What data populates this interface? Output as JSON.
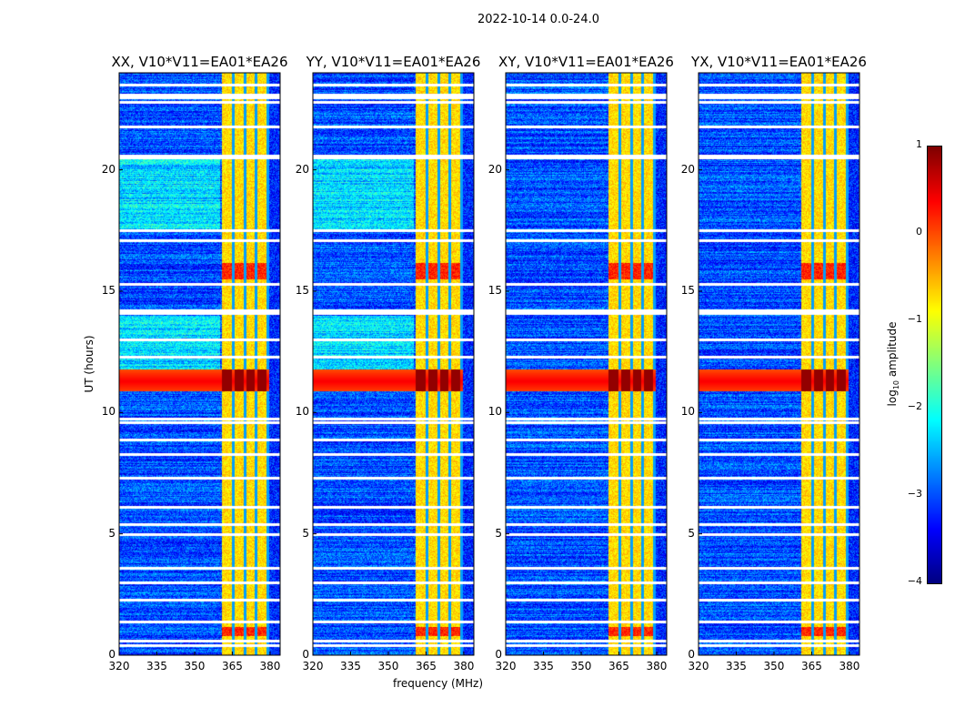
{
  "chart_data": {
    "type": "heatmap",
    "title": "2022-10-14 0.0-24.0",
    "xlabel": "frequency (MHz)",
    "ylabel": "UT (hours)",
    "xlim": [
      320,
      384
    ],
    "ylim": [
      0,
      24
    ],
    "xticks": [
      "320",
      "335",
      "350",
      "365",
      "380"
    ],
    "yticks": [
      "0",
      "5",
      "10",
      "15",
      "20"
    ],
    "panels": [
      {
        "title": "XX, V10*V11=EA01*EA26",
        "cross": false
      },
      {
        "title": "YY, V10*V11=EA01*EA26",
        "cross": false
      },
      {
        "title": "XY, V10*V11=EA01*EA26",
        "cross": true
      },
      {
        "title": "YX, V10*V11=EA01*EA26",
        "cross": true
      }
    ],
    "colorbar": {
      "label": "log10 amplitude",
      "label_main": "log",
      "label_sub": "10",
      "label_rest": " amplitude",
      "range": [
        -4,
        1
      ],
      "ticks": [
        "1",
        "0",
        "−1",
        "−2",
        "−3",
        "−4"
      ],
      "colormap": "jet"
    },
    "features": {
      "rfi_band_mhz": [
        360.5,
        379.5
      ],
      "rfi_level": -0.7,
      "background_level": -3.0,
      "strong_event_hours": [
        10.9,
        11.8
      ],
      "strong_event_level": 0.4,
      "flagged_hours": [
        0.4,
        0.6,
        1.4,
        2.3,
        3.0,
        3.6,
        5.0,
        5.4,
        6.1,
        7.3,
        8.3,
        8.9,
        9.6,
        9.75,
        12.3,
        13.0,
        14.1,
        14.2,
        15.3,
        17.1,
        17.5,
        20.5,
        20.6,
        21.8,
        22.8,
        23.0,
        23.1,
        23.5
      ]
    }
  }
}
